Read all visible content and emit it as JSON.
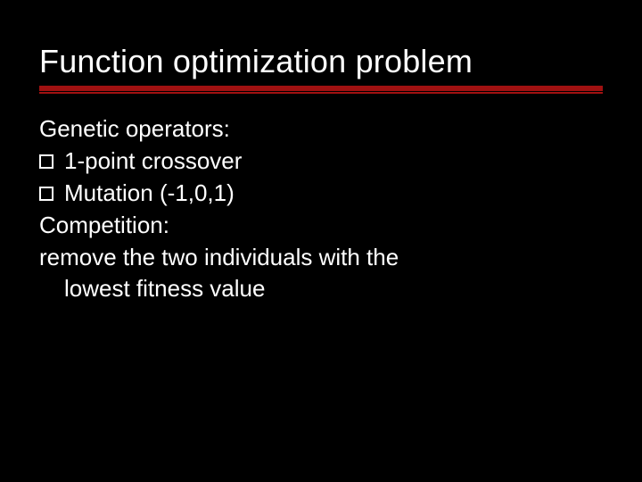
{
  "slide": {
    "title": "Function optimization problem",
    "title_fontsize": 36,
    "title_color": "#ffffff",
    "rule_color": "#a01111",
    "rule_thick_height": 6,
    "rule_thin_height": 2,
    "background_color": "#000000",
    "body_fontsize": 26,
    "body_color": "#ffffff",
    "bullet_box_border": "#ffffff",
    "lines": [
      {
        "type": "plain",
        "text": "Genetic operators:"
      },
      {
        "type": "bullet",
        "text": "1-point crossover"
      },
      {
        "type": "bullet",
        "text": "Mutation (-1,0,1)"
      },
      {
        "type": "plain",
        "text": "Competition:"
      },
      {
        "type": "plain",
        "text": "remove the two individuals with the"
      },
      {
        "type": "indent",
        "text": "lowest fitness value"
      }
    ]
  }
}
